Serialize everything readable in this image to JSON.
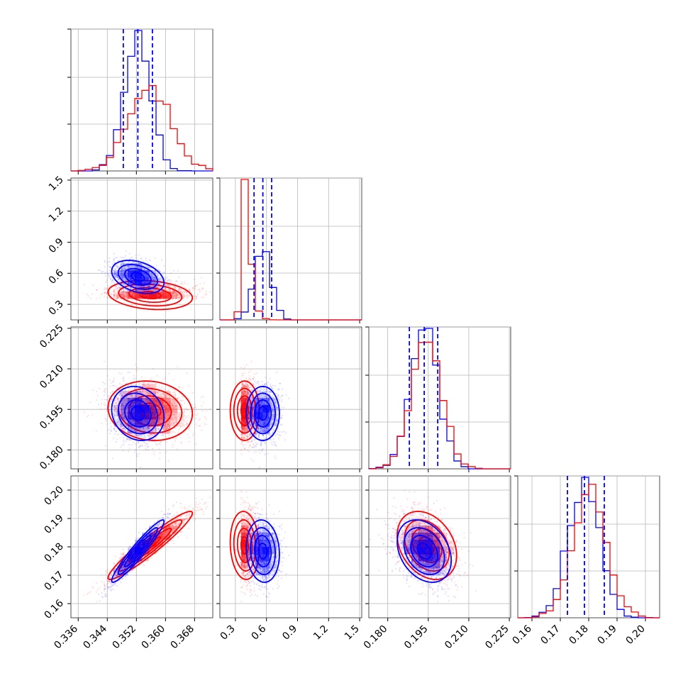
{
  "chart_data": {
    "type": "corner",
    "params": [
      {
        "range": [
          0.334,
          0.373
        ],
        "ticks": [
          "0.336",
          "0.344",
          "0.352",
          "0.360",
          "0.368"
        ],
        "tick_values": [
          0.336,
          0.344,
          0.352,
          0.36,
          0.368
        ]
      },
      {
        "range": [
          0.15,
          1.52
        ],
        "ticks": [
          "0.3",
          "0.6",
          "0.9",
          "1.2",
          "1.5"
        ],
        "tick_values": [
          0.3,
          0.6,
          0.9,
          1.2,
          1.5
        ]
      },
      {
        "range": [
          0.173,
          0.2255
        ],
        "ticks": [
          "0.180",
          "0.195",
          "0.210",
          "0.225"
        ],
        "tick_values": [
          0.18,
          0.195,
          0.21,
          0.225
        ]
      },
      {
        "range": [
          0.155,
          0.205
        ],
        "ticks": [
          "0.16",
          "0.17",
          "0.18",
          "0.19",
          "0.20"
        ],
        "tick_values": [
          0.16,
          0.17,
          0.18,
          0.19,
          0.2
        ]
      }
    ],
    "series": [
      {
        "color": "#0000ff",
        "means": [
          0.3524,
          0.565,
          0.1935,
          0.1785
        ],
        "sds": [
          0.0036,
          0.08,
          0.005,
          0.0055
        ],
        "corr": [
          [
            1,
            -0.35,
            -0.15,
            0.95
          ],
          [
            -0.35,
            1,
            0.0,
            -0.1
          ],
          [
            -0.15,
            0.0,
            1,
            -0.3
          ],
          [
            0.95,
            -0.1,
            -0.3,
            1
          ]
        ],
        "quantiles": [
          [
            0.3484,
            0.3524,
            0.3564
          ],
          [
            0.48,
            0.565,
            0.65
          ],
          [
            0.188,
            0.1935,
            0.1985
          ],
          [
            0.1725,
            0.1785,
            0.1855
          ]
        ]
      },
      {
        "color": "#ff0000",
        "means": [
          0.3558,
          0.39,
          0.1945,
          0.1805
        ],
        "sds": [
          0.0058,
          0.07,
          0.0055,
          0.006
        ],
        "corr": [
          [
            1,
            -0.2,
            -0.1,
            0.95
          ],
          [
            -0.2,
            1,
            0.0,
            -0.1
          ],
          [
            -0.1,
            0.0,
            1,
            -0.3
          ],
          [
            0.95,
            -0.1,
            -0.3,
            1
          ]
        ]
      }
    ],
    "quantile_line_color": "#0000ff",
    "grid": true,
    "legend": "none",
    "title": "",
    "xlabel": "",
    "ylabel": ""
  }
}
